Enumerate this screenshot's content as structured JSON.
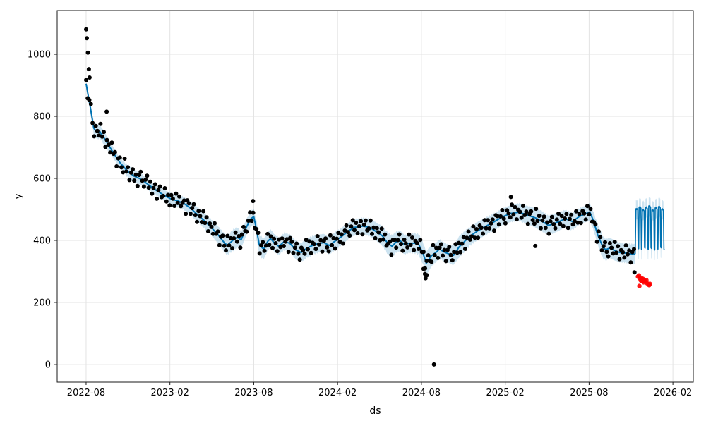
{
  "axes": {
    "xlabel": "ds",
    "ylabel": "y",
    "x_tick_labels": [
      "2022-08",
      "2023-02",
      "2023-08",
      "2024-02",
      "2024-08",
      "2025-02",
      "2025-08",
      "2026-02"
    ],
    "x_tick_months": [
      0,
      6,
      12,
      18,
      24,
      30,
      36,
      42
    ],
    "y_ticks": [
      0,
      200,
      400,
      600,
      800,
      1000
    ],
    "xlim_months": [
      -2.07,
      43.46
    ],
    "ylim": [
      -57,
      1141
    ],
    "grid": true
  },
  "chart_data": {
    "type": "line",
    "description": "Prophet-style time series forecast: black observed points, blue yhat line with light-blue uncertainty interval, oscillating weekly-seasonal forecast after 2025-11, red anomaly points below forecast",
    "title": "",
    "xlabel": "ds",
    "ylabel": "y",
    "x_origin_label": "2022-08",
    "history_end_label": "2025-11",
    "forecast_end_label": "2026-01",
    "trend_yhat_by_month": [
      [
        0,
        905
      ],
      [
        0.3,
        830
      ],
      [
        0.55,
        762
      ],
      [
        0.75,
        750
      ],
      [
        1.0,
        750
      ],
      [
        1.4,
        722
      ],
      [
        1.9,
        686
      ],
      [
        2.4,
        652
      ],
      [
        2.95,
        624
      ],
      [
        3.4,
        608
      ],
      [
        3.95,
        597
      ],
      [
        4.3,
        585
      ],
      [
        5.0,
        562
      ],
      [
        5.6,
        545
      ],
      [
        6.1,
        533
      ],
      [
        6.6,
        527
      ],
      [
        7.0,
        519
      ],
      [
        7.5,
        503
      ],
      [
        8.0,
        482
      ],
      [
        8.5,
        462
      ],
      [
        9.0,
        440
      ],
      [
        9.5,
        415
      ],
      [
        9.9,
        392
      ],
      [
        10.1,
        384
      ],
      [
        10.5,
        400
      ],
      [
        10.8,
        410
      ],
      [
        11.1,
        402
      ],
      [
        11.5,
        445
      ],
      [
        11.8,
        470
      ],
      [
        12.0,
        477
      ],
      [
        12.15,
        445
      ],
      [
        12.4,
        385
      ],
      [
        12.7,
        372
      ],
      [
        13.0,
        397
      ],
      [
        13.2,
        406
      ],
      [
        13.5,
        390
      ],
      [
        13.8,
        381
      ],
      [
        14.2,
        397
      ],
      [
        14.6,
        390
      ],
      [
        15.0,
        369
      ],
      [
        15.4,
        361
      ],
      [
        15.8,
        375
      ],
      [
        16.3,
        386
      ],
      [
        17.0,
        393
      ],
      [
        17.4,
        384
      ],
      [
        17.8,
        397
      ],
      [
        18.3,
        413
      ],
      [
        18.8,
        431
      ],
      [
        19.2,
        442
      ],
      [
        19.8,
        446
      ],
      [
        20.3,
        442
      ],
      [
        20.8,
        427
      ],
      [
        21.2,
        415
      ],
      [
        21.6,
        390
      ],
      [
        21.9,
        381
      ],
      [
        22.2,
        395
      ],
      [
        22.5,
        398
      ],
      [
        22.8,
        386
      ],
      [
        23.1,
        391
      ],
      [
        23.5,
        391
      ],
      [
        23.8,
        388
      ],
      [
        24.1,
        360
      ],
      [
        24.35,
        326
      ],
      [
        24.7,
        350
      ],
      [
        25.0,
        360
      ],
      [
        25.3,
        372
      ],
      [
        25.6,
        363
      ],
      [
        26.0,
        356
      ],
      [
        26.3,
        352
      ],
      [
        26.7,
        379
      ],
      [
        27.1,
        397
      ],
      [
        27.5,
        414
      ],
      [
        28.0,
        430
      ],
      [
        28.5,
        443
      ],
      [
        29.2,
        460
      ],
      [
        29.8,
        476
      ],
      [
        30.4,
        487
      ],
      [
        31.0,
        491
      ],
      [
        31.5,
        483
      ],
      [
        32.2,
        472
      ],
      [
        32.8,
        457
      ],
      [
        33.1,
        448
      ],
      [
        33.8,
        460
      ],
      [
        34.3,
        470
      ],
      [
        34.8,
        461
      ],
      [
        35.3,
        477
      ],
      [
        35.8,
        487
      ],
      [
        36.05,
        492
      ],
      [
        36.3,
        465
      ],
      [
        36.6,
        420
      ],
      [
        37.0,
        377
      ],
      [
        37.2,
        370
      ],
      [
        37.5,
        376
      ],
      [
        37.8,
        368
      ],
      [
        38.2,
        361
      ],
      [
        38.6,
        359
      ],
      [
        39.0,
        357
      ],
      [
        39.3,
        356
      ]
    ],
    "band_halfwidth_by_month": [
      [
        0,
        6
      ],
      [
        0.3,
        16
      ],
      [
        0.8,
        22
      ],
      [
        1.5,
        20
      ],
      [
        2.5,
        16
      ],
      [
        3.2,
        22
      ],
      [
        4,
        18
      ],
      [
        5,
        16
      ],
      [
        6,
        18
      ],
      [
        7,
        20
      ],
      [
        8,
        24
      ],
      [
        9,
        26
      ],
      [
        10,
        30
      ],
      [
        10.6,
        34
      ],
      [
        11.2,
        26
      ],
      [
        12,
        24
      ],
      [
        12.5,
        34
      ],
      [
        13,
        30
      ],
      [
        14,
        28
      ],
      [
        15,
        30
      ],
      [
        16,
        30
      ],
      [
        17,
        28
      ],
      [
        18,
        28
      ],
      [
        19,
        26
      ],
      [
        20,
        28
      ],
      [
        21,
        30
      ],
      [
        21.8,
        36
      ],
      [
        22.5,
        32
      ],
      [
        23.2,
        30
      ],
      [
        24,
        34
      ],
      [
        24.5,
        38
      ],
      [
        25,
        32
      ],
      [
        26,
        30
      ],
      [
        26.8,
        34
      ],
      [
        27.5,
        30
      ],
      [
        28.5,
        28
      ],
      [
        29.5,
        26
      ],
      [
        30.5,
        28
      ],
      [
        31.5,
        30
      ],
      [
        32.5,
        32
      ],
      [
        33.5,
        30
      ],
      [
        34.5,
        28
      ],
      [
        35.5,
        26
      ],
      [
        36.3,
        30
      ],
      [
        37,
        36
      ],
      [
        37.8,
        32
      ],
      [
        38.5,
        30
      ],
      [
        39.3,
        32
      ]
    ],
    "observed_points": {
      "interval_months": 0.115,
      "start_month": 0,
      "end_month": 39.25,
      "noise_offsets": [
        12,
        -18,
        5,
        22,
        -8,
        -25,
        15,
        3,
        -12,
        28,
        -5,
        18,
        -22,
        8,
        2,
        -15,
        25,
        -3,
        10,
        -28,
        6,
        16,
        -10,
        -20,
        30,
        -6,
        13,
        -24,
        4,
        19,
        -14,
        7,
        -27,
        11,
        23,
        -2,
        -17,
        9,
        26,
        -9,
        14,
        -21,
        1,
        17,
        -26,
        5,
        20,
        -11,
        -4,
        24,
        -16,
        8,
        -23,
        13,
        3,
        -19,
        22,
        -7,
        16,
        -13,
        0,
        10,
        -29,
        18
      ]
    },
    "outlier_points_black": [
      [
        0.0,
        1080
      ],
      [
        0.05,
        1052
      ],
      [
        0.13,
        1005
      ],
      [
        0.2,
        952
      ],
      [
        0.25,
        925
      ],
      [
        1.47,
        815
      ],
      [
        11.95,
        527
      ],
      [
        24.15,
        308
      ],
      [
        24.25,
        292
      ],
      [
        24.3,
        278
      ],
      [
        24.4,
        288
      ],
      [
        24.9,
        0
      ],
      [
        30.4,
        540
      ],
      [
        32.15,
        382
      ],
      [
        39.25,
        297
      ]
    ],
    "anomaly_points_red": [
      [
        39.5,
        283
      ],
      [
        39.57,
        287
      ],
      [
        39.6,
        253
      ],
      [
        39.62,
        278
      ],
      [
        39.7,
        271
      ],
      [
        39.75,
        278
      ],
      [
        39.8,
        269
      ],
      [
        39.85,
        276
      ],
      [
        39.9,
        265
      ],
      [
        39.95,
        271
      ],
      [
        40.05,
        267
      ],
      [
        40.1,
        272
      ],
      [
        40.15,
        262
      ],
      [
        40.25,
        258
      ],
      [
        40.3,
        256
      ],
      [
        40.35,
        260
      ]
    ],
    "forecast": {
      "start_month": 39.35,
      "days": 63,
      "days_per_month": 30.4,
      "weekly_high": [
        500,
        506,
        497,
        505,
        509,
        496,
        503,
        507,
        499,
        504
      ],
      "weekly_low": [
        374,
        371,
        376,
        372,
        375,
        370,
        373,
        377,
        371,
        374
      ],
      "high_day_jitter": [
        2,
        -1,
        3,
        0,
        -2
      ],
      "band_upper_offset": 29,
      "band_lower_offset": 33
    },
    "colors": {
      "yhat_line": "#0072B2",
      "uncertainty_band": "#0072B2",
      "band_alpha": 0.2,
      "observed": "#000000",
      "anomaly": "#ff0000",
      "grid": "#e3e3e3",
      "spine": "#1a1a1a",
      "background": "#ffffff"
    },
    "legend": "none"
  }
}
